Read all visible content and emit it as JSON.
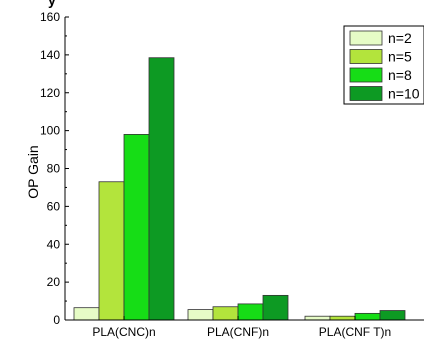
{
  "chart_data": {
    "type": "bar",
    "title": "y",
    "xlabel": "",
    "ylabel": "OP Gain",
    "categories": [
      "PLA(CNC)n",
      "PLA(CNF)n",
      "PLA(CNF T)n"
    ],
    "ylim": [
      0,
      160
    ],
    "yticks": [
      0,
      20,
      40,
      60,
      80,
      100,
      120,
      140,
      160
    ],
    "grid": false,
    "legend_position": "top-right",
    "series": [
      {
        "name": "n=2",
        "color": "#e6fcc6",
        "values": [
          6.5,
          5.5,
          2
        ]
      },
      {
        "name": "n=5",
        "color": "#b3e43c",
        "values": [
          73,
          7,
          2
        ]
      },
      {
        "name": "n=8",
        "color": "#16dd16",
        "values": [
          98,
          8.5,
          3.5
        ]
      },
      {
        "name": "n=10",
        "color": "#0d9a23",
        "values": [
          138.5,
          13,
          5
        ]
      }
    ]
  }
}
